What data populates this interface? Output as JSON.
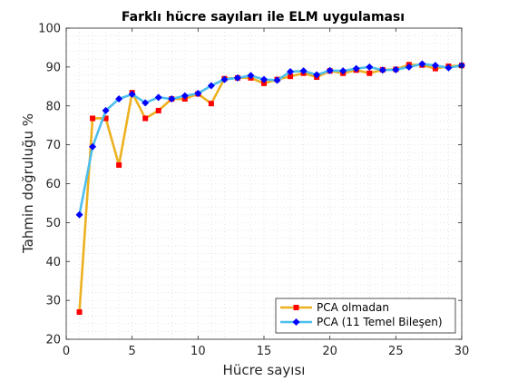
{
  "chart_data": {
    "type": "line",
    "title": "Farklı hücre sayıları ile ELM uygulaması",
    "xlabel": "Hücre sayısı",
    "ylabel": "Tahmin doğruluğu %",
    "xlim": [
      0,
      30
    ],
    "ylim": [
      20,
      100
    ],
    "xticks": [
      0,
      5,
      10,
      15,
      20,
      25,
      30
    ],
    "yticks": [
      20,
      30,
      40,
      50,
      60,
      70,
      80,
      90,
      100
    ],
    "grid": "dotted",
    "legend_position": "bottom-right",
    "x": [
      1,
      2,
      3,
      4,
      5,
      6,
      7,
      8,
      9,
      10,
      11,
      12,
      13,
      14,
      15,
      16,
      17,
      18,
      19,
      20,
      21,
      22,
      23,
      24,
      25,
      26,
      27,
      28,
      29,
      30
    ],
    "series": [
      {
        "name": "PCA olmadan",
        "color": "#EDB120",
        "marker_color": "#FF0000",
        "marker": "square",
        "values": [
          27,
          76.8,
          76.8,
          64.8,
          83.4,
          76.8,
          78.8,
          81.8,
          81.8,
          83.1,
          80.6,
          87,
          87.2,
          87.2,
          85.8,
          86.8,
          87.6,
          88.4,
          87.4,
          89,
          88.4,
          89.2,
          88.4,
          89.3,
          89.4,
          90.6,
          90.5,
          89.6,
          90.2,
          90.4
        ]
      },
      {
        "name": "PCA (11 Temel Bileşen)",
        "color": "#4DBEEE",
        "marker_color": "#0000FF",
        "marker": "diamond",
        "values": [
          52,
          69.5,
          78.8,
          81.8,
          83,
          80.8,
          82.2,
          81.8,
          82.6,
          83.2,
          85.2,
          86.8,
          87.2,
          87.8,
          86.8,
          86.6,
          88.8,
          89,
          88,
          89.1,
          89,
          89.6,
          90,
          89.2,
          89.3,
          90,
          90.8,
          90.4,
          89.8,
          90.4
        ]
      }
    ]
  }
}
